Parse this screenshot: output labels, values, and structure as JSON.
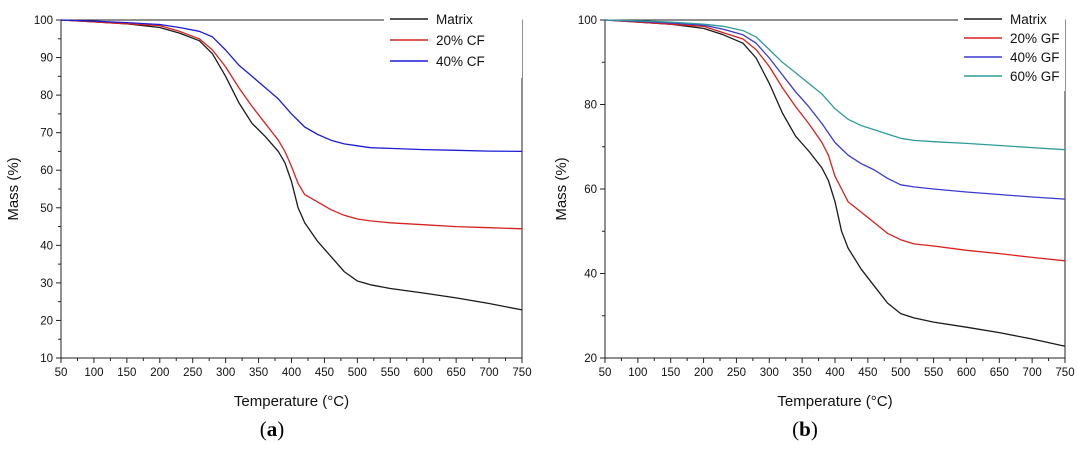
{
  "figure_captions": [
    {
      "open": "(",
      "letter": "a",
      "close": ")"
    },
    {
      "open": "(",
      "letter": "b",
      "close": ")"
    }
  ],
  "chart_data": [
    {
      "type": "line",
      "title": "",
      "xlabel": "Temperature (°C)",
      "ylabel": "Mass (%)",
      "xlim": [
        50,
        750
      ],
      "ylim": [
        10,
        100
      ],
      "xticks": [
        50,
        100,
        150,
        200,
        250,
        300,
        350,
        400,
        450,
        500,
        550,
        600,
        650,
        700,
        750
      ],
      "yticks": [
        10,
        20,
        30,
        40,
        50,
        60,
        70,
        80,
        90,
        100
      ],
      "grid": false,
      "legend_position": "top-right",
      "series": [
        {
          "name": "Matrix",
          "color": "#1a1a1a",
          "x": [
            50,
            100,
            150,
            200,
            230,
            260,
            280,
            300,
            320,
            340,
            360,
            380,
            390,
            400,
            410,
            420,
            440,
            460,
            480,
            500,
            520,
            550,
            600,
            650,
            700,
            750
          ],
          "y": [
            100,
            99.5,
            99,
            98,
            96.5,
            94.5,
            91,
            85,
            78,
            72.5,
            69,
            65,
            62,
            57,
            50,
            46,
            41,
            37,
            33,
            30.5,
            29.5,
            28.5,
            27.3,
            26,
            24.5,
            22.8
          ]
        },
        {
          "name": "20% CF",
          "color": "#d8211d",
          "x": [
            50,
            100,
            150,
            200,
            230,
            260,
            280,
            300,
            320,
            340,
            360,
            380,
            390,
            400,
            410,
            420,
            440,
            460,
            480,
            500,
            520,
            550,
            600,
            650,
            700,
            750
          ],
          "y": [
            100,
            99.5,
            99,
            98.5,
            97,
            95,
            92,
            87.5,
            82,
            77,
            72.5,
            68,
            65,
            61,
            56.5,
            53.5,
            51.5,
            49.5,
            48,
            47,
            46.5,
            46,
            45.5,
            45,
            44.7,
            44.4
          ]
        },
        {
          "name": "40% CF",
          "color": "#1c1cd4",
          "x": [
            50,
            100,
            150,
            200,
            230,
            260,
            280,
            300,
            320,
            340,
            360,
            380,
            400,
            420,
            440,
            460,
            480,
            500,
            520,
            550,
            600,
            650,
            700,
            750
          ],
          "y": [
            100,
            99.7,
            99.3,
            98.8,
            98,
            97,
            95.5,
            92,
            88,
            85,
            82,
            79,
            75,
            71.5,
            69.5,
            68,
            67,
            66.5,
            66,
            65.8,
            65.5,
            65.3,
            65.1,
            65
          ]
        }
      ]
    },
    {
      "type": "line",
      "title": "",
      "xlabel": "Temperature (°C)",
      "ylabel": "Mass (%)",
      "xlim": [
        50,
        750
      ],
      "ylim": [
        20,
        100
      ],
      "xticks": [
        50,
        100,
        150,
        200,
        250,
        300,
        350,
        400,
        450,
        500,
        550,
        600,
        650,
        700,
        750
      ],
      "yticks": [
        20,
        40,
        60,
        80,
        100
      ],
      "grid": false,
      "legend_position": "top-right",
      "series": [
        {
          "name": "Matrix",
          "color": "#1a1a1a",
          "x": [
            50,
            100,
            150,
            200,
            230,
            260,
            280,
            300,
            320,
            340,
            360,
            380,
            390,
            400,
            410,
            420,
            440,
            460,
            480,
            500,
            520,
            550,
            600,
            650,
            700,
            750
          ],
          "y": [
            100,
            99.5,
            99,
            98,
            96.5,
            94.5,
            91,
            85,
            78,
            72.5,
            69,
            65,
            62,
            57,
            50,
            46,
            41,
            37,
            33,
            30.5,
            29.5,
            28.5,
            27.3,
            26,
            24.5,
            22.8
          ]
        },
        {
          "name": "20% GF",
          "color": "#d8211d",
          "x": [
            50,
            100,
            150,
            200,
            230,
            260,
            280,
            300,
            320,
            340,
            360,
            380,
            390,
            400,
            410,
            420,
            440,
            460,
            480,
            500,
            520,
            550,
            600,
            650,
            700,
            750
          ],
          "y": [
            100,
            99.5,
            99,
            98.5,
            97,
            95.5,
            93,
            89,
            84,
            79.5,
            75.5,
            71,
            68,
            63,
            60,
            57,
            54.5,
            52,
            49.5,
            48,
            47,
            46.5,
            45.5,
            44.7,
            43.8,
            43
          ]
        },
        {
          "name": "40% GF",
          "color": "#3a3ad0",
          "x": [
            50,
            100,
            150,
            200,
            230,
            260,
            280,
            300,
            320,
            340,
            360,
            380,
            400,
            420,
            440,
            460,
            480,
            500,
            520,
            550,
            600,
            650,
            700,
            750
          ],
          "y": [
            100,
            99.7,
            99.3,
            98.8,
            97.8,
            96.5,
            94.5,
            91,
            87,
            83,
            79.5,
            75.5,
            71,
            68,
            66,
            64.5,
            62.5,
            61,
            60.5,
            60,
            59.3,
            58.7,
            58.1,
            57.6
          ]
        },
        {
          "name": "60% GF",
          "color": "#2f9a9a",
          "x": [
            50,
            100,
            150,
            200,
            230,
            260,
            280,
            300,
            320,
            340,
            360,
            380,
            400,
            420,
            440,
            460,
            480,
            500,
            520,
            550,
            600,
            650,
            700,
            750
          ],
          "y": [
            100,
            99.8,
            99.5,
            99,
            98.5,
            97.5,
            96,
            93,
            90,
            87.5,
            85,
            82.5,
            79,
            76.5,
            75,
            74,
            73,
            72,
            71.5,
            71.2,
            70.8,
            70.3,
            69.8,
            69.3
          ]
        }
      ]
    }
  ]
}
